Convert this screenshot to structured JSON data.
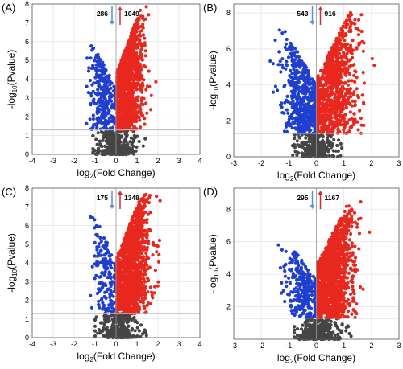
{
  "colors": {
    "up": "#e8281e",
    "down": "#1f3fcf",
    "ns": "#454545",
    "grid": "#e4e4e4",
    "threshold": "#b8b8b8",
    "arrow_down": "#5b8fd6",
    "arrow_up": "#c8303a"
  },
  "chart_data": [
    {
      "type": "scatter",
      "panel_label": "(A)",
      "xlabel": "log2(Fold Change)",
      "ylabel": "-log10(Pvalue)",
      "xlim": [
        -4,
        4
      ],
      "ylim": [
        0,
        8
      ],
      "xticks": [
        -4,
        -3,
        -2,
        -1,
        0,
        1,
        2,
        3,
        4
      ],
      "yticks": [
        0,
        1,
        2,
        3,
        4,
        5,
        6,
        7,
        8
      ],
      "grid": true,
      "threshold_y": 1.3,
      "down_count": "286",
      "up_count": "1049",
      "series": [
        {
          "category": "down",
          "n": 286,
          "center": -0.6,
          "spread": 0.35,
          "min_x": -2.0,
          "max_x": -0.05,
          "ymin": 1.3,
          "ymax": 6.2
        },
        {
          "category": "up",
          "n": 1049,
          "center": 0.6,
          "spread": 0.4,
          "min_x": 0.05,
          "max_x": 2.5,
          "ymin": 1.3,
          "ymax": 7.9
        },
        {
          "category": "ns",
          "n": 300,
          "center": 0,
          "spread": 0.45,
          "min_x": -1.1,
          "max_x": 1.6,
          "ymin": 0,
          "ymax": 1.3
        }
      ]
    },
    {
      "type": "scatter",
      "panel_label": "(B)",
      "xlabel": "log2(Fold Change)",
      "ylabel": "-log10(Pvalue)",
      "xlim": [
        -3,
        3
      ],
      "ylim": [
        0,
        8.5
      ],
      "xticks": [
        -3,
        -2,
        -1,
        0,
        1,
        2,
        3
      ],
      "yticks": [
        0,
        2,
        4,
        6,
        8
      ],
      "grid": true,
      "threshold_y": 1.3,
      "down_count": "543",
      "up_count": "916",
      "series": [
        {
          "category": "down",
          "n": 543,
          "center": -0.5,
          "spread": 0.4,
          "min_x": -2.0,
          "max_x": -0.05,
          "ymin": 1.3,
          "ymax": 7.3
        },
        {
          "category": "up",
          "n": 916,
          "center": 0.6,
          "spread": 0.45,
          "min_x": 0.05,
          "max_x": 2.5,
          "ymin": 1.3,
          "ymax": 8.1
        },
        {
          "category": "ns",
          "n": 300,
          "center": 0,
          "spread": 0.35,
          "min_x": -1.8,
          "max_x": 1.1,
          "ymin": 0,
          "ymax": 1.3
        }
      ]
    },
    {
      "type": "scatter",
      "panel_label": "(C)",
      "xlabel": "log2(Fold Change)",
      "ylabel": "-log10(Pvalue)",
      "xlim": [
        -4,
        4
      ],
      "ylim": [
        0,
        8
      ],
      "xticks": [
        -4,
        -3,
        -2,
        -1,
        0,
        1,
        2,
        3,
        4
      ],
      "yticks": [
        0,
        1,
        2,
        3,
        4,
        5,
        6,
        7,
        8
      ],
      "grid": true,
      "threshold_y": 1.3,
      "down_count": "175",
      "up_count": "1348",
      "series": [
        {
          "category": "down",
          "n": 175,
          "center": -0.5,
          "spread": 0.35,
          "min_x": -2.0,
          "max_x": -0.05,
          "ymin": 1.3,
          "ymax": 7.2
        },
        {
          "category": "up",
          "n": 1348,
          "center": 0.7,
          "spread": 0.45,
          "min_x": 0.05,
          "max_x": 2.7,
          "ymin": 1.3,
          "ymax": 7.7
        },
        {
          "category": "ns",
          "n": 300,
          "center": 0.1,
          "spread": 0.45,
          "min_x": -1.0,
          "max_x": 1.7,
          "ymin": 0,
          "ymax": 1.3
        }
      ]
    },
    {
      "type": "scatter",
      "panel_label": "(D)",
      "xlabel": "log2(Fold Change)",
      "ylabel": "-log10(Pvalue)",
      "xlim": [
        -3,
        3
      ],
      "ylim": [
        0,
        9.3
      ],
      "xticks": [
        -3,
        -2,
        -1,
        0,
        1,
        2,
        3
      ],
      "yticks": [
        2,
        4,
        6,
        8
      ],
      "grid": true,
      "threshold_y": 1.3,
      "down_count": "295",
      "up_count": "1167",
      "series": [
        {
          "category": "down",
          "n": 295,
          "center": -0.5,
          "spread": 0.35,
          "min_x": -1.7,
          "max_x": -0.05,
          "ymin": 1.3,
          "ymax": 6.5
        },
        {
          "category": "up",
          "n": 1167,
          "center": 0.6,
          "spread": 0.4,
          "min_x": 0.05,
          "max_x": 2.1,
          "ymin": 1.3,
          "ymax": 8.6
        },
        {
          "category": "ns",
          "n": 300,
          "center": 0.1,
          "spread": 0.4,
          "min_x": -0.8,
          "max_x": 1.7,
          "ymin": 0,
          "ymax": 1.3
        }
      ]
    }
  ]
}
